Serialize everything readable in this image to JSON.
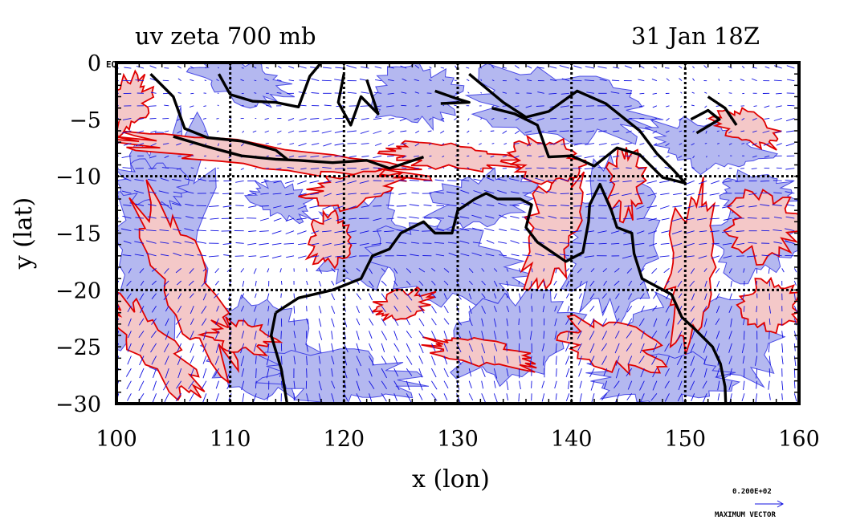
{
  "map": {
    "title_left": "uv zeta 700 mb",
    "title_right": "31 Jan 18Z",
    "xlabel": "x (lon)",
    "ylabel": "y (lat)",
    "x_ticks": [
      "100",
      "110",
      "120",
      "130",
      "140",
      "150",
      "160"
    ],
    "y_ticks": [
      "0",
      "−5",
      "−10",
      "−15",
      "−20",
      "−25",
      "−30"
    ],
    "y_tick_suffix": "EQ",
    "vector_scale_value": "0.200E+02",
    "vector_scale_label": "MAXIMUM VECTOR",
    "xlim": [
      100,
      160
    ],
    "ylim": [
      -30,
      0
    ],
    "grid": true,
    "colors": {
      "positive_fill": "#f4c8c8",
      "positive_contour": "#e00000",
      "negative_fill": "#b4b8f0",
      "vectors": "#1010e0",
      "coastline": "#000000",
      "frame": "#000000"
    },
    "layers": [
      "relative vorticity (zeta) shaded",
      "zeta contours",
      "uv wind vectors",
      "coastlines"
    ]
  }
}
